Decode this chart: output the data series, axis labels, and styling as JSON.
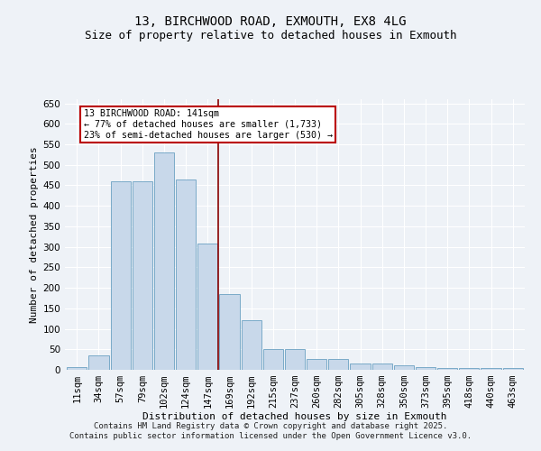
{
  "title_line1": "13, BIRCHWOOD ROAD, EXMOUTH, EX8 4LG",
  "title_line2": "Size of property relative to detached houses in Exmouth",
  "xlabel": "Distribution of detached houses by size in Exmouth",
  "ylabel": "Number of detached properties",
  "bar_labels": [
    "11sqm",
    "34sqm",
    "57sqm",
    "79sqm",
    "102sqm",
    "124sqm",
    "147sqm",
    "169sqm",
    "192sqm",
    "215sqm",
    "237sqm",
    "260sqm",
    "282sqm",
    "305sqm",
    "328sqm",
    "350sqm",
    "373sqm",
    "395sqm",
    "418sqm",
    "440sqm",
    "463sqm"
  ],
  "bar_values": [
    6,
    35,
    460,
    460,
    530,
    465,
    308,
    185,
    120,
    50,
    50,
    27,
    27,
    15,
    15,
    10,
    7,
    5,
    5,
    5,
    5
  ],
  "bar_color": "#c8d8ea",
  "bar_edgecolor": "#7aaac8",
  "vline_x": 6.5,
  "vline_color": "#880000",
  "annotation_text": "13 BIRCHWOOD ROAD: 141sqm\n← 77% of detached houses are smaller (1,733)\n23% of semi-detached houses are larger (530) →",
  "annotation_box_color": "#ffffff",
  "annotation_box_edgecolor": "#bb0000",
  "ylim": [
    0,
    660
  ],
  "yticks": [
    0,
    50,
    100,
    150,
    200,
    250,
    300,
    350,
    400,
    450,
    500,
    550,
    600,
    650
  ],
  "background_color": "#eef2f7",
  "grid_color": "#ffffff",
  "title_fontsize": 10,
  "subtitle_fontsize": 9,
  "axis_label_fontsize": 8,
  "tick_fontsize": 7.5,
  "footer_text": "Contains HM Land Registry data © Crown copyright and database right 2025.\nContains public sector information licensed under the Open Government Licence v3.0.",
  "footer_fontsize": 6.5
}
